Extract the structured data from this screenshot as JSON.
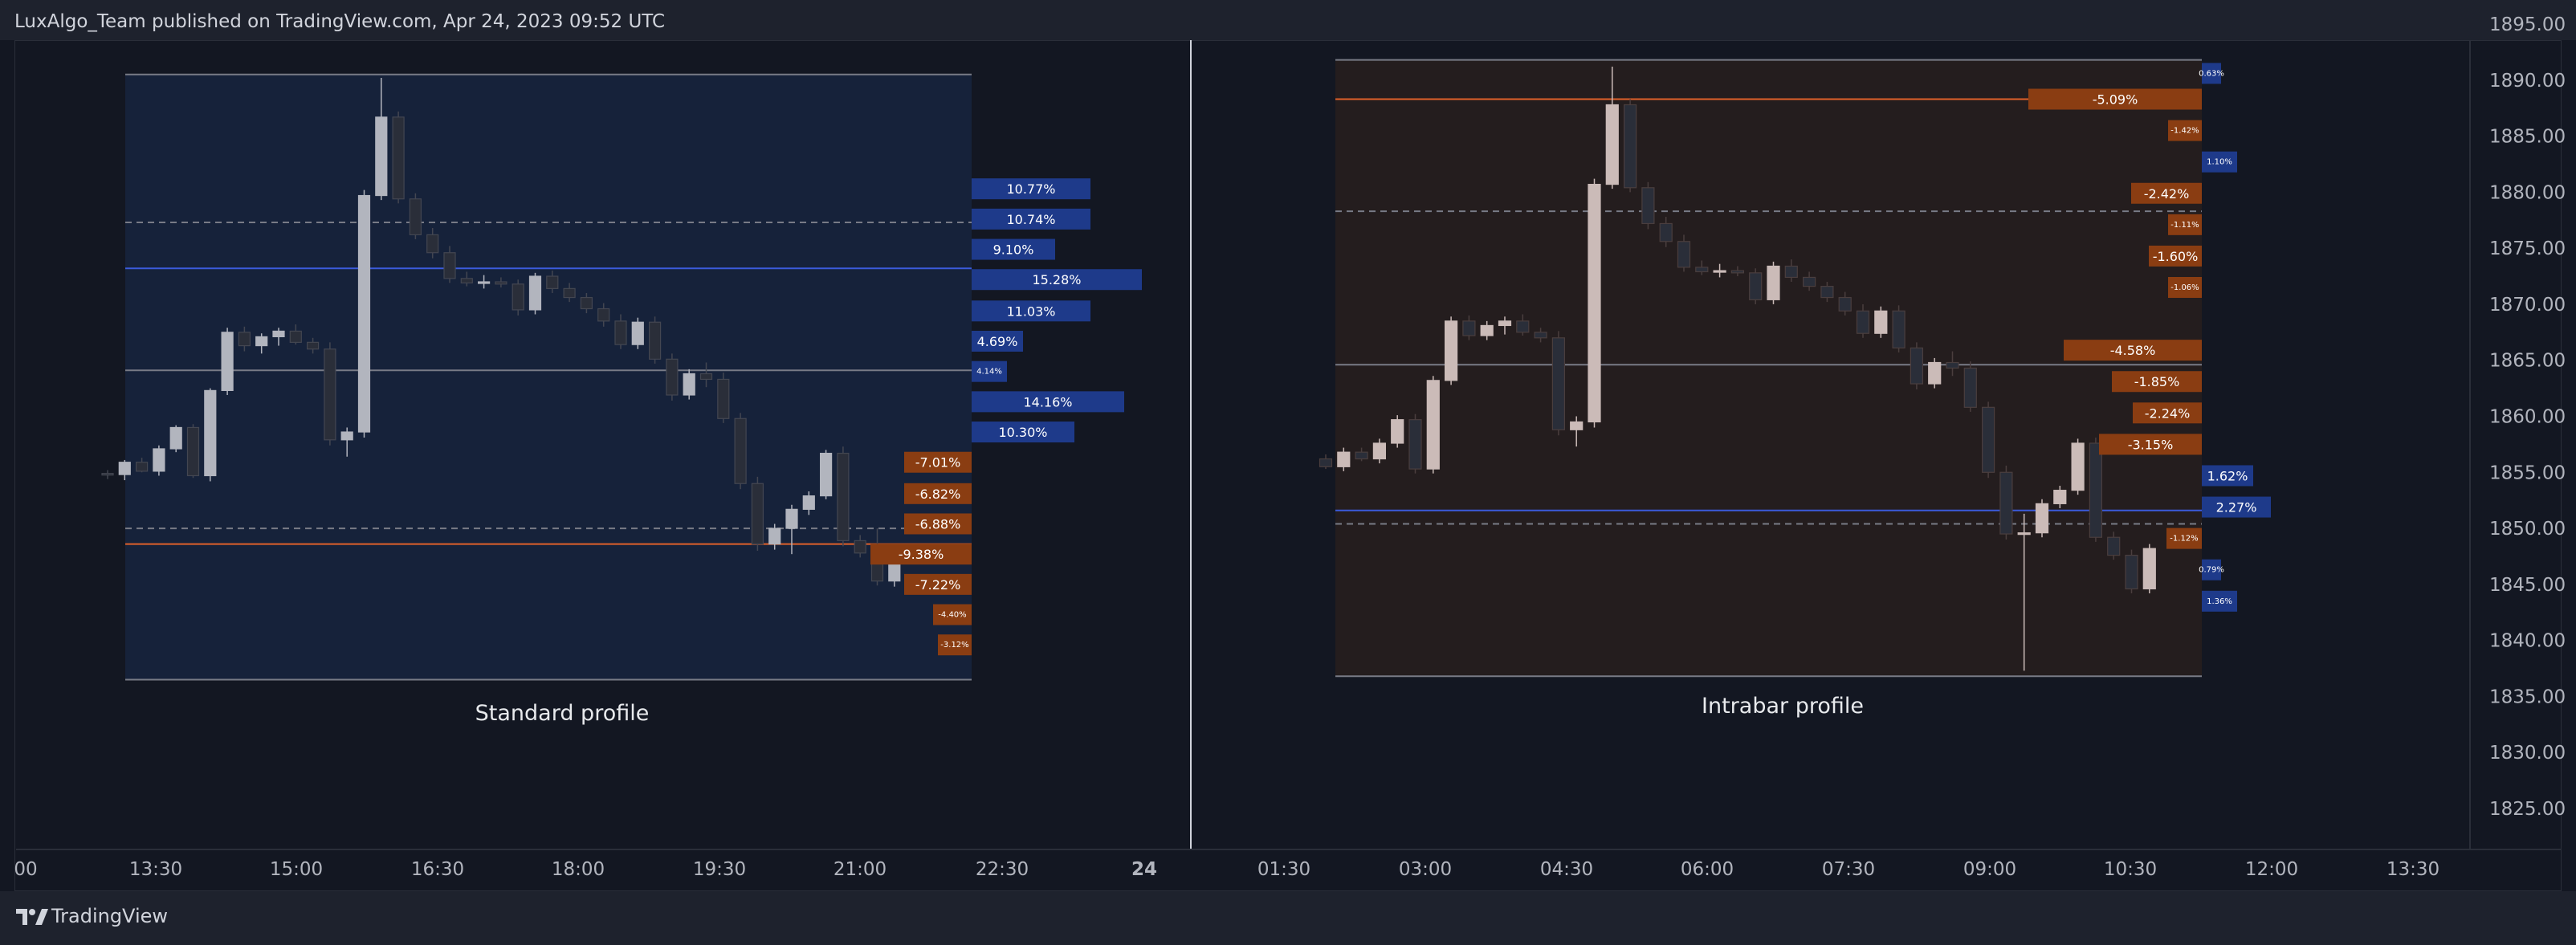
{
  "header": {
    "published_text": "LuxAlgo_Team published on TradingView.com, Apr 24, 2023 09:52 UTC"
  },
  "footer": {
    "brand": "TradingView"
  },
  "colors": {
    "bull": "#b2b5be",
    "bear": "#434651",
    "bull_alt": "#cbbbb8",
    "bear_alt": "#4a3e3e",
    "blue_bar": "#1e3a8a",
    "orange_bar": "#8a3d12",
    "orange_line": "#e0612a",
    "blue_line": "#3b5bdb",
    "std_bg": "#17233d",
    "intra_bg": "#271e1e"
  },
  "chart_data": {
    "type": "candlestick",
    "price_axis": {
      "ticks": [
        1895,
        1890,
        1885,
        1880,
        1875,
        1870,
        1865,
        1860,
        1855,
        1850,
        1845,
        1840,
        1835,
        1830,
        1825
      ],
      "labels": [
        "1895.00",
        "1890.00",
        "1885.00",
        "1880.00",
        "1875.00",
        "1870.00",
        "1865.00",
        "1860.00",
        "1855.00",
        "1850.00",
        "1845.00",
        "1840.00",
        "1835.00",
        "1830.00",
        "1825.00"
      ]
    },
    "time_axis": {
      "labels": [
        "00",
        "13:30",
        "15:00",
        "16:30",
        "18:00",
        "19:30",
        "21:00",
        "22:30",
        "24",
        "01:30",
        "03:00",
        "04:30",
        "06:00",
        "07:30",
        "09:00",
        "10:30",
        "12:00",
        "13:30"
      ],
      "bold": [
        "24"
      ]
    },
    "panels": [
      {
        "label": "Standard profile",
        "range": {
          "top": 1890.5,
          "bottom": 1836.5
        },
        "lines": [
          {
            "kind": "dashed",
            "price": 1877.3
          },
          {
            "kind": "solid-blue",
            "price": 1873.2
          },
          {
            "kind": "solid-gray",
            "price": 1864.1
          },
          {
            "kind": "dashed",
            "price": 1850.0
          },
          {
            "kind": "solid-orange",
            "price": 1848.6
          }
        ],
        "profile_bars": [
          {
            "label": "10.77%",
            "price": 1880.3,
            "side": "up"
          },
          {
            "label": "10.74%",
            "price": 1877.6,
            "side": "up"
          },
          {
            "label": "9.10%",
            "price": 1874.9,
            "side": "up"
          },
          {
            "label": "15.28%",
            "price": 1872.2,
            "side": "up"
          },
          {
            "label": "11.03%",
            "price": 1869.4,
            "side": "up"
          },
          {
            "label": "4.69%",
            "price": 1866.7,
            "side": "up"
          },
          {
            "label": "4.14%",
            "price": 1864.0,
            "side": "up"
          },
          {
            "label": "14.16%",
            "price": 1861.3,
            "side": "up"
          },
          {
            "label": "10.30%",
            "price": 1858.6,
            "side": "up"
          },
          {
            "label": "-7.01%",
            "price": 1855.9,
            "side": "down"
          },
          {
            "label": "-6.82%",
            "price": 1853.1,
            "side": "down"
          },
          {
            "label": "-6.88%",
            "price": 1850.4,
            "side": "down"
          },
          {
            "label": "-9.38%",
            "price": 1847.7,
            "side": "down"
          },
          {
            "label": "-7.22%",
            "price": 1845.0,
            "side": "down"
          },
          {
            "label": "-4.40%",
            "price": 1842.3,
            "side": "down"
          },
          {
            "label": "-3.12%",
            "price": 1839.6,
            "side": "down"
          }
        ],
        "candles": [
          [
            1854.9,
            1855.2,
            1854.4,
            1854.8
          ],
          [
            1854.8,
            1856.1,
            1854.3,
            1855.9
          ],
          [
            1855.9,
            1856.3,
            1855.0,
            1855.1
          ],
          [
            1855.1,
            1857.4,
            1854.7,
            1857.1
          ],
          [
            1857.1,
            1859.2,
            1856.8,
            1859.0
          ],
          [
            1859.0,
            1859.3,
            1854.5,
            1854.7
          ],
          [
            1854.7,
            1862.5,
            1854.2,
            1862.3
          ],
          [
            1862.3,
            1867.9,
            1861.9,
            1867.5
          ],
          [
            1867.5,
            1868.0,
            1865.8,
            1866.3
          ],
          [
            1866.3,
            1867.4,
            1865.6,
            1867.1
          ],
          [
            1867.1,
            1867.9,
            1866.3,
            1867.6
          ],
          [
            1867.6,
            1868.2,
            1866.4,
            1866.6
          ],
          [
            1866.6,
            1867.0,
            1865.6,
            1866.0
          ],
          [
            1866.0,
            1866.6,
            1857.4,
            1857.9
          ],
          [
            1857.9,
            1859.0,
            1856.4,
            1858.6
          ],
          [
            1858.6,
            1880.2,
            1858.1,
            1879.7
          ],
          [
            1879.7,
            1890.2,
            1879.3,
            1886.7
          ],
          [
            1886.7,
            1887.2,
            1879.0,
            1879.4
          ],
          [
            1879.4,
            1879.9,
            1875.8,
            1876.2
          ],
          [
            1876.2,
            1876.8,
            1874.1,
            1874.6
          ],
          [
            1874.6,
            1875.2,
            1871.9,
            1872.3
          ],
          [
            1872.3,
            1872.9,
            1871.6,
            1871.9
          ],
          [
            1871.9,
            1872.6,
            1871.4,
            1872.0
          ],
          [
            1872.0,
            1872.4,
            1871.5,
            1871.8
          ],
          [
            1871.8,
            1872.2,
            1869.0,
            1869.5
          ],
          [
            1869.5,
            1872.8,
            1869.1,
            1872.5
          ],
          [
            1872.5,
            1873.0,
            1871.0,
            1871.4
          ],
          [
            1871.4,
            1871.9,
            1870.2,
            1870.6
          ],
          [
            1870.6,
            1871.0,
            1869.2,
            1869.6
          ],
          [
            1869.6,
            1870.1,
            1868.0,
            1868.5
          ],
          [
            1868.5,
            1869.1,
            1866.0,
            1866.4
          ],
          [
            1866.4,
            1868.8,
            1866.0,
            1868.4
          ],
          [
            1868.4,
            1868.9,
            1864.7,
            1865.1
          ],
          [
            1865.1,
            1865.6,
            1861.4,
            1861.9
          ],
          [
            1861.9,
            1864.2,
            1861.5,
            1863.8
          ],
          [
            1863.8,
            1864.8,
            1862.6,
            1863.3
          ],
          [
            1863.3,
            1863.9,
            1859.4,
            1859.8
          ],
          [
            1859.8,
            1860.3,
            1853.5,
            1854.0
          ],
          [
            1854.0,
            1854.6,
            1848.0,
            1848.6
          ],
          [
            1848.6,
            1850.4,
            1848.1,
            1850.0
          ],
          [
            1850.0,
            1852.1,
            1847.7,
            1851.7
          ],
          [
            1851.7,
            1853.3,
            1851.2,
            1852.9
          ],
          [
            1852.9,
            1857.0,
            1852.6,
            1856.7
          ],
          [
            1856.7,
            1857.3,
            1848.4,
            1848.9
          ],
          [
            1848.9,
            1849.4,
            1847.4,
            1847.8
          ],
          [
            1847.8,
            1850.0,
            1844.9,
            1845.3
          ],
          [
            1845.3,
            1848.6,
            1844.8,
            1848.2
          ]
        ]
      },
      {
        "label": "Intrabar profile",
        "range": {
          "top": 1891.8,
          "bottom": 1836.8
        },
        "lines": [
          {
            "kind": "solid-orange",
            "price": 1888.3
          },
          {
            "kind": "dashed",
            "price": 1878.3
          },
          {
            "kind": "solid-gray",
            "price": 1864.6
          },
          {
            "kind": "solid-blue",
            "price": 1851.6
          },
          {
            "kind": "dashed",
            "price": 1850.4
          }
        ],
        "profile_bars": [
          {
            "label": "0.63%",
            "price": 1890.6,
            "side": "up"
          },
          {
            "label": "-5.09%",
            "price": 1888.3,
            "side": "down"
          },
          {
            "label": "-1.42%",
            "price": 1885.5,
            "side": "down"
          },
          {
            "label": "1.10%",
            "price": 1882.7,
            "side": "up"
          },
          {
            "label": "-2.42%",
            "price": 1879.9,
            "side": "down"
          },
          {
            "label": "-1.11%",
            "price": 1877.1,
            "side": "down"
          },
          {
            "label": "-1.60%",
            "price": 1874.3,
            "side": "down"
          },
          {
            "label": "-1.06%",
            "price": 1871.5,
            "side": "down"
          },
          {
            "label": "-4.58%",
            "price": 1865.9,
            "side": "down"
          },
          {
            "label": "-1.85%",
            "price": 1863.1,
            "side": "down"
          },
          {
            "label": "-2.24%",
            "price": 1860.3,
            "side": "down"
          },
          {
            "label": "-3.15%",
            "price": 1857.5,
            "side": "down"
          },
          {
            "label": "1.62%",
            "price": 1854.7,
            "side": "up"
          },
          {
            "label": "2.27%",
            "price": 1851.9,
            "side": "up"
          },
          {
            "label": "-1.12%",
            "price": 1849.1,
            "side": "down"
          },
          {
            "label": "0.79%",
            "price": 1846.3,
            "side": "up"
          },
          {
            "label": "1.36%",
            "price": 1843.5,
            "side": "up"
          }
        ],
        "candles": [
          [
            1856.2,
            1856.6,
            1855.3,
            1855.5
          ],
          [
            1855.5,
            1857.2,
            1855.1,
            1856.8
          ],
          [
            1856.8,
            1857.2,
            1856.0,
            1856.2
          ],
          [
            1856.2,
            1858.0,
            1855.8,
            1857.6
          ],
          [
            1857.6,
            1860.1,
            1857.2,
            1859.7
          ],
          [
            1859.7,
            1860.2,
            1854.9,
            1855.3
          ],
          [
            1855.3,
            1863.6,
            1854.9,
            1863.2
          ],
          [
            1863.2,
            1868.9,
            1862.8,
            1868.5
          ],
          [
            1868.5,
            1869.0,
            1866.8,
            1867.2
          ],
          [
            1867.2,
            1868.5,
            1866.8,
            1868.1
          ],
          [
            1868.1,
            1868.9,
            1867.3,
            1868.5
          ],
          [
            1868.5,
            1869.1,
            1867.2,
            1867.5
          ],
          [
            1867.5,
            1867.9,
            1866.6,
            1867.0
          ],
          [
            1867.0,
            1867.6,
            1858.3,
            1858.8
          ],
          [
            1858.8,
            1860.0,
            1857.3,
            1859.5
          ],
          [
            1859.5,
            1881.2,
            1859.0,
            1880.7
          ],
          [
            1880.7,
            1891.2,
            1880.3,
            1887.8
          ],
          [
            1887.8,
            1888.3,
            1880.0,
            1880.4
          ],
          [
            1880.4,
            1880.9,
            1876.7,
            1877.2
          ],
          [
            1877.2,
            1877.8,
            1875.1,
            1875.6
          ],
          [
            1875.6,
            1876.2,
            1872.9,
            1873.3
          ],
          [
            1873.3,
            1873.9,
            1872.6,
            1872.9
          ],
          [
            1872.9,
            1873.6,
            1872.4,
            1873.0
          ],
          [
            1873.0,
            1873.4,
            1872.5,
            1872.8
          ],
          [
            1872.8,
            1873.2,
            1870.0,
            1870.4
          ],
          [
            1870.4,
            1873.8,
            1870.0,
            1873.4
          ],
          [
            1873.4,
            1874.0,
            1872.0,
            1872.4
          ],
          [
            1872.4,
            1872.9,
            1871.2,
            1871.6
          ],
          [
            1871.6,
            1872.0,
            1870.2,
            1870.6
          ],
          [
            1870.6,
            1871.1,
            1869.0,
            1869.4
          ],
          [
            1869.4,
            1870.0,
            1867.0,
            1867.4
          ],
          [
            1867.4,
            1869.8,
            1867.0,
            1869.4
          ],
          [
            1869.4,
            1869.9,
            1865.7,
            1866.1
          ],
          [
            1866.1,
            1866.6,
            1862.4,
            1862.9
          ],
          [
            1862.9,
            1865.2,
            1862.5,
            1864.8
          ],
          [
            1864.8,
            1865.8,
            1863.6,
            1864.3
          ],
          [
            1864.3,
            1864.9,
            1860.4,
            1860.8
          ],
          [
            1860.8,
            1861.3,
            1854.5,
            1855.0
          ],
          [
            1855.0,
            1855.6,
            1849.0,
            1849.5
          ],
          [
            1849.5,
            1851.3,
            1837.3,
            1849.6
          ],
          [
            1849.6,
            1852.6,
            1849.2,
            1852.2
          ],
          [
            1852.2,
            1853.8,
            1851.8,
            1853.4
          ],
          [
            1853.4,
            1858.0,
            1853.0,
            1857.6
          ],
          [
            1857.6,
            1858.1,
            1848.8,
            1849.2
          ],
          [
            1849.2,
            1849.7,
            1847.2,
            1847.6
          ],
          [
            1847.6,
            1848.1,
            1844.2,
            1844.6
          ],
          [
            1844.6,
            1848.6,
            1844.2,
            1848.2
          ]
        ]
      }
    ]
  }
}
